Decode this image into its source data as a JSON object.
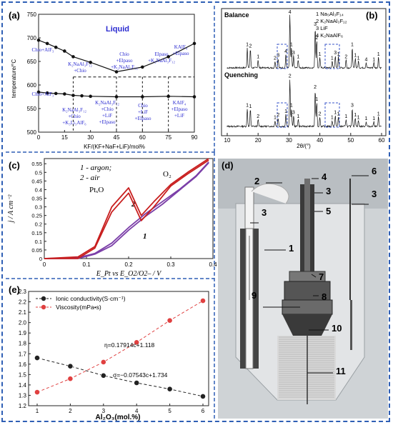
{
  "panels": {
    "a": {
      "letter": "(a)",
      "liquid": "Liquid",
      "ylabel": "temperature/°C",
      "xlabel": "KF/(KF+NaF+LiF)/mol%",
      "xticks": [
        "0",
        "15",
        "30",
        "45",
        "60",
        "75",
        "90"
      ],
      "yticks": [
        "500",
        "550",
        "600",
        "650",
        "700",
        "750"
      ],
      "regions": [
        {
          "l1": "Chio+AlF₃"
        },
        {
          "l1": "K₂NaAl₃F₁₂",
          "l2": "+Chio"
        },
        {
          "l1": "Chio",
          "l2": "+Elpaso",
          "l3": "+K₂NaAl₃F₁₂"
        },
        {
          "l1": "Elpaso",
          "l2": "+K₂NaAl₃F₁₂"
        },
        {
          "l1": "KAlF₄",
          "l2": "+Elpaso"
        },
        {
          "l1": "Chio+AlF₃"
        },
        {
          "l1": "K₂NaAl₃F₁₂",
          "l2": "+Chio",
          "l3": "+K₃Li₃AlF₆"
        },
        {
          "l1": "K₂NaAl₃F₁₂",
          "l2": "+Chio",
          "l3": "+LiF",
          "l4": "+Elpaso"
        },
        {
          "l1": "Chio",
          "l2": "+LiF",
          "l3": "+Elpaso"
        },
        {
          "l1": "KAlF₄",
          "l2": "+Elpaso",
          "l3": "+LiF"
        }
      ]
    },
    "b": {
      "letter": "(b)",
      "balance": "Balance",
      "quenching": "Quenching",
      "xlabel": "2θ/(°)",
      "xticks": [
        "10",
        "20",
        "30",
        "40",
        "50",
        "60"
      ],
      "legend": [
        "1 Na₅Al₃F₁₄",
        "2 K₂NaAl₃F₁₂",
        "3 LiF",
        "4 K₂NaAlF₆"
      ],
      "peak_labels_top": [
        "1",
        "2",
        "1",
        "2",
        "3",
        "4",
        "4",
        "1",
        "3",
        "1",
        "3",
        "2",
        "1",
        "1",
        "3",
        "1",
        "2",
        "1",
        "1",
        "1",
        "4",
        "1",
        "1"
      ],
      "peak_labels_bottom": [
        "1",
        "1",
        "2",
        "1",
        "2",
        "1",
        "2",
        "1",
        "3",
        "1",
        "2",
        "1",
        "2",
        "1",
        "1",
        "1",
        "1",
        "3",
        "1",
        "1",
        "1",
        "1",
        "1"
      ]
    },
    "c": {
      "letter": "(c)",
      "legend1": "1 - argon;",
      "legend2": "2 - air",
      "ylabel": "j / A cm⁻²",
      "xlabel": "E_Pt vs E_O2/O2– / V",
      "xticks": [
        "0",
        "0.1",
        "0.2",
        "0.3",
        "0.4"
      ],
      "yticks": [
        "0",
        "0.05",
        "0.1",
        "0.15",
        "0.2",
        "0.25",
        "0.3",
        "0.35",
        "0.4",
        "0.45",
        "0.5",
        "0.55"
      ],
      "pt_label": "PtₓO",
      "o2_label": "O₂",
      "curve1_label": "1",
      "curve2_label": "2"
    },
    "d": {
      "letter": "(d)",
      "labels": [
        "1",
        "2",
        "3",
        "4",
        "5",
        "6",
        "7",
        "8",
        "9",
        "10",
        "11",
        "3",
        "3"
      ]
    },
    "e": {
      "letter": "(e)",
      "xlabel": "Al₂O₃(mol.%)",
      "yticks": [
        "1.2",
        "1.3",
        "1.4",
        "1.5",
        "1.6",
        "1.7",
        "1.8",
        "1.9",
        "2.0",
        "2.1",
        "2.2",
        "2.3"
      ],
      "xticks": [
        "1",
        "2",
        "3",
        "4",
        "5",
        "6"
      ],
      "eq1": "η=0.17914c+1.118",
      "eq2": "σ=−0.07543c+1.734"
    }
  },
  "chart_data": [
    {
      "type": "scatter",
      "panel": "e",
      "xlabel": "Al₂O₃(mol.%)",
      "ylim": [
        1.2,
        2.3
      ],
      "xlim": [
        1,
        6
      ],
      "series": [
        {
          "name": "Ionic conductivity(S·cm⁻¹)",
          "color": "#222222",
          "x": [
            1,
            2,
            3,
            4,
            5,
            6
          ],
          "y": [
            1.66,
            1.58,
            1.49,
            1.42,
            1.36,
            1.29
          ]
        },
        {
          "name": "Viscosity(mPa•s)",
          "color": "#e04040",
          "x": [
            1,
            2,
            3,
            4,
            5,
            6
          ],
          "y": [
            1.33,
            1.46,
            1.62,
            1.81,
            2.02,
            2.21
          ]
        }
      ]
    },
    {
      "type": "line",
      "panel": "c",
      "xlim": [
        0,
        0.4
      ],
      "ylim": [
        0,
        0.58
      ],
      "series": [
        {
          "name": "1",
          "color": "#7b3fa8",
          "x": [
            0,
            0.08,
            0.12,
            0.16,
            0.2,
            0.24,
            0.28,
            0.32,
            0.36,
            0.39
          ],
          "y": [
            0,
            0.005,
            0.03,
            0.09,
            0.18,
            0.26,
            0.33,
            0.4,
            0.48,
            0.56
          ]
        },
        {
          "name": "2",
          "color": "#c81e1e",
          "x": [
            0,
            0.08,
            0.12,
            0.16,
            0.2,
            0.23,
            0.26,
            0.3,
            0.34,
            0.39
          ],
          "y": [
            0,
            0.01,
            0.07,
            0.3,
            0.41,
            0.25,
            0.33,
            0.43,
            0.5,
            0.58
          ]
        }
      ]
    },
    {
      "type": "scatter",
      "panel": "a",
      "xlabel": "KF/(KF+NaF+LiF)/mol%",
      "ylabel": "temperature/°C",
      "xlim": [
        0,
        90
      ],
      "ylim": [
        500,
        750
      ],
      "series": [
        {
          "name": "liquidus",
          "x": [
            0,
            5,
            10,
            15,
            20,
            30,
            45,
            60,
            75,
            90
          ],
          "y": [
            695,
            688,
            680,
            672,
            660,
            648,
            628,
            638,
            660,
            688
          ]
        },
        {
          "name": "low",
          "x": [
            0,
            5,
            10,
            15,
            20,
            25,
            30,
            45,
            60,
            75,
            90
          ],
          "y": [
            585,
            583,
            582,
            581,
            578,
            577,
            576,
            575,
            575,
            576,
            575
          ]
        }
      ]
    }
  ]
}
